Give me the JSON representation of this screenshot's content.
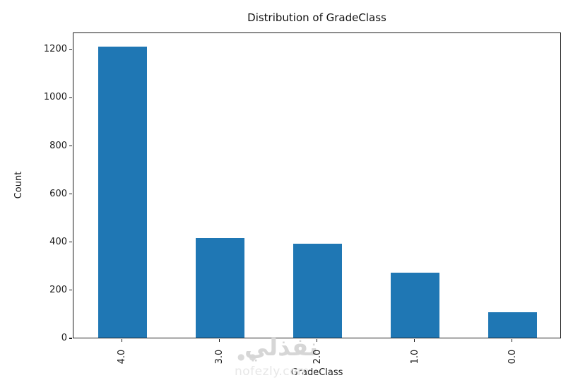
{
  "chart_data": {
    "type": "bar",
    "title": "Distribution of GradeClass",
    "xlabel": "GradeClass",
    "ylabel": "Count",
    "categories": [
      "4.0",
      "3.0",
      "2.0",
      "1.0",
      "0.0"
    ],
    "values": [
      1211,
      414,
      391,
      269,
      107
    ],
    "yticks": [
      0,
      200,
      400,
      600,
      800,
      1000,
      1200
    ],
    "ylim": [
      0,
      1271.55
    ],
    "bar_color": "#1f77b4",
    "bar_width_fraction": 0.5,
    "x_tick_rotation_deg": 90,
    "grid": false,
    "legend": null,
    "spine_color": "#1c1c1c"
  },
  "watermark": {
    "arabic": "نفذلي",
    "dots": "● ●",
    "domain": "nofezly.com",
    "top_domain": "nofezly.com"
  }
}
